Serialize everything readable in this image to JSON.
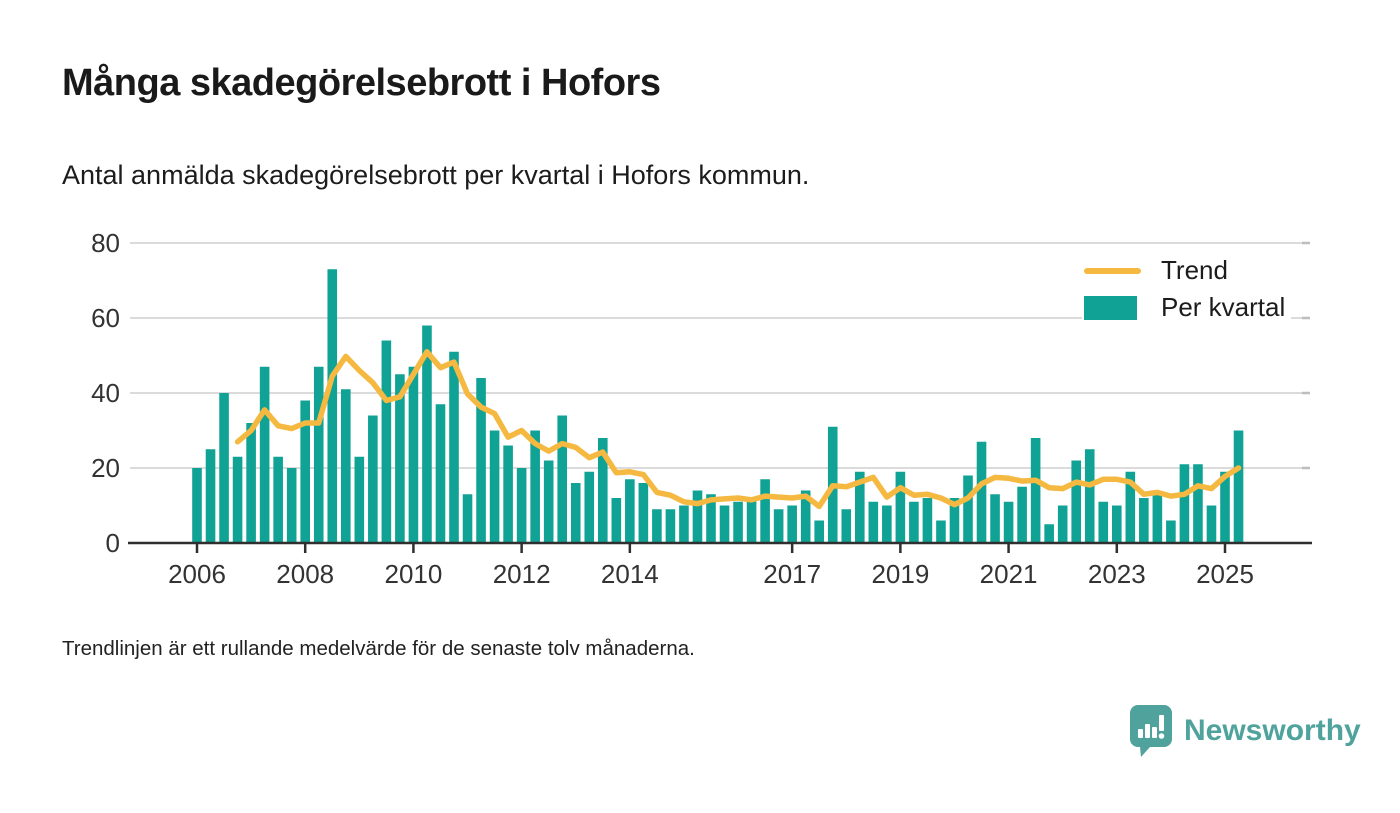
{
  "header": {
    "title": "Många skadegörelsebrott i Hofors",
    "subtitle": "Antal anmälda skadegörelsebrott per kvartal i Hofors kommun."
  },
  "legend": {
    "trend_label": "Trend",
    "bars_label": "Per kvartal"
  },
  "footer": {
    "note": "Trendlinjen är ett rullande medelvärde för de senaste tolv månaderna."
  },
  "branding": {
    "name": "Newsworthy"
  },
  "colors": {
    "bar": "#10A294",
    "trend": "#F5B840",
    "grid": "#DBDBDB",
    "grid_edge_tick": "#BDBDBD",
    "axis": "#2F2F2F",
    "tick_text": "#333333",
    "brand": "#4FA39C"
  },
  "chart_data": {
    "type": "bar",
    "title": "Många skadegörelsebrott i Hofors",
    "subtitle": "Antal anmälda skadegörelsebrott per kvartal i Hofors kommun.",
    "series_name": "Per kvartal",
    "trend_name": "Trend",
    "trend_definition": "rullande medelvärde för de senaste tolv månaderna",
    "trend_window_quarters": 4,
    "x_start_label": "2006 Q1",
    "x_end_label": "2025 Q2",
    "values": [
      20,
      25,
      40,
      23,
      32,
      47,
      23,
      20,
      38,
      47,
      73,
      41,
      23,
      34,
      54,
      45,
      47,
      58,
      37,
      51,
      13,
      44,
      30,
      26,
      20,
      30,
      22,
      34,
      16,
      19,
      28,
      12,
      17,
      16,
      9,
      9,
      10,
      14,
      13,
      10,
      11,
      12,
      17,
      9,
      10,
      14,
      6,
      31,
      9,
      19,
      11,
      10,
      19,
      11,
      12,
      6,
      12,
      18,
      27,
      13,
      11,
      15,
      28,
      5,
      10,
      22,
      25,
      11,
      10,
      19,
      12,
      13,
      6,
      21,
      21,
      10,
      19,
      30
    ],
    "ylim": [
      0,
      80
    ],
    "y_ticks": [
      0,
      20,
      40,
      60,
      80
    ],
    "x_tick_labels": [
      "2006",
      "2008",
      "2010",
      "2012",
      "2014",
      "2017",
      "2019",
      "2021",
      "2023",
      "2025"
    ],
    "x_tick_quarter_indices": [
      0,
      8,
      16,
      24,
      32,
      44,
      52,
      60,
      68,
      76
    ],
    "grid": "horizontal",
    "legend_position": "top-right"
  }
}
